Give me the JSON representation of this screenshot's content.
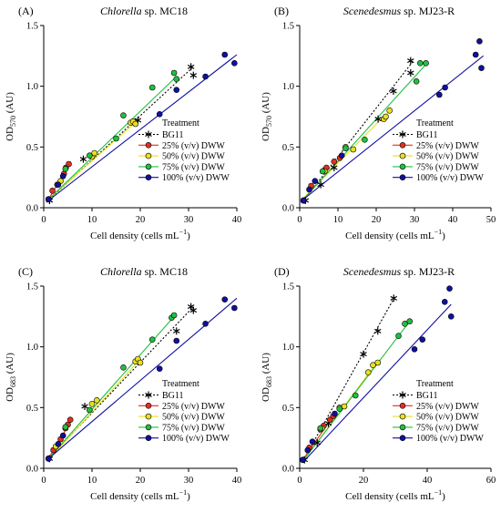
{
  "figure": {
    "legend_title": "Treatment",
    "legend_placement": "bottom-right"
  },
  "chart_data": [
    {
      "type": "scatter",
      "panel_label": "(A)",
      "title_italic": "Chlorella",
      "title_rest": " sp. MC18",
      "xlabel_main": "Cell density (cells mL",
      "xlabel_sup": "−1",
      "xlabel_end": ")",
      "ylabel_main": "OD",
      "ylabel_sub": "570",
      "ylabel_end": " (AU)",
      "xlim": [
        0,
        40
      ],
      "ylim": [
        0,
        1.5
      ],
      "xticks": [
        0,
        10,
        20,
        30,
        40
      ],
      "yticks": [
        0.0,
        0.5,
        1.0,
        1.5
      ],
      "series": [
        {
          "name": "BG11",
          "color": "#000000",
          "marker": "asterisk",
          "line": "dotted",
          "points": [
            [
              1.2,
              0.06
            ],
            [
              8.2,
              0.4
            ],
            [
              19.5,
              0.72
            ],
            [
              30.5,
              1.16
            ],
            [
              31.0,
              1.09
            ]
          ],
          "fit": [
            [
              1.2,
              0.07
            ],
            [
              31.0,
              1.16
            ]
          ]
        },
        {
          "name": "25% (v/v) DWW",
          "color": "#e03020",
          "marker": "circle",
          "line": "solid",
          "points": [
            [
              1.0,
              0.07
            ],
            [
              1.8,
              0.14
            ],
            [
              2.8,
              0.19
            ],
            [
              4.2,
              0.28
            ],
            [
              4.6,
              0.33
            ],
            [
              5.2,
              0.36
            ]
          ],
          "fit": [
            [
              1.0,
              0.07
            ],
            [
              5.2,
              0.35
            ]
          ]
        },
        {
          "name": "50% (v/v) DWW",
          "color": "#e8e020",
          "marker": "circle",
          "line": "solid",
          "points": [
            [
              1.0,
              0.07
            ],
            [
              3.5,
              0.22
            ],
            [
              10.0,
              0.42
            ],
            [
              10.5,
              0.45
            ],
            [
              18.0,
              0.7
            ],
            [
              18.5,
              0.71
            ],
            [
              19.0,
              0.69
            ]
          ],
          "fit": [
            [
              1.0,
              0.07
            ],
            [
              19.5,
              0.72
            ]
          ]
        },
        {
          "name": "75% (v/v) DWW",
          "color": "#20c040",
          "marker": "circle",
          "line": "solid",
          "points": [
            [
              1.0,
              0.07
            ],
            [
              4.5,
              0.32
            ],
            [
              9.5,
              0.43
            ],
            [
              15.0,
              0.57
            ],
            [
              16.5,
              0.76
            ],
            [
              22.5,
              0.99
            ],
            [
              27.0,
              1.11
            ],
            [
              27.5,
              1.06
            ]
          ],
          "fit": [
            [
              1.0,
              0.07
            ],
            [
              27.5,
              1.08
            ]
          ]
        },
        {
          "name": "100% (v/v) DWW",
          "color": "#1010a0",
          "marker": "circle",
          "line": "solid",
          "points": [
            [
              1.0,
              0.07
            ],
            [
              3.0,
              0.19
            ],
            [
              4.0,
              0.26
            ],
            [
              24.0,
              0.77
            ],
            [
              27.5,
              0.97
            ],
            [
              33.5,
              1.08
            ],
            [
              37.5,
              1.26
            ],
            [
              39.5,
              1.19
            ]
          ],
          "fit": [
            [
              1.0,
              0.06
            ],
            [
              40.0,
              1.26
            ]
          ]
        }
      ]
    },
    {
      "type": "scatter",
      "panel_label": "(B)",
      "title_italic": "Scenedesmus",
      "title_rest": " sp. MJ23-R",
      "xlabel_main": "Cell density (cells mL",
      "xlabel_sup": "−1",
      "xlabel_end": ")",
      "ylabel_main": "OD",
      "ylabel_sub": "570",
      "ylabel_end": " (AU)",
      "xlim": [
        0,
        50
      ],
      "ylim": [
        0,
        1.5
      ],
      "xticks": [
        0,
        10,
        20,
        30,
        40,
        50
      ],
      "yticks": [
        0.0,
        0.5,
        1.0,
        1.5
      ],
      "series": [
        {
          "name": "BG11",
          "color": "#000000",
          "marker": "asterisk",
          "line": "dotted",
          "points": [
            [
              1.5,
              0.06
            ],
            [
              5.5,
              0.19
            ],
            [
              9.0,
              0.33
            ],
            [
              20.5,
              0.73
            ],
            [
              24.5,
              0.96
            ],
            [
              29.0,
              1.11
            ],
            [
              29.0,
              1.21
            ]
          ],
          "fit": [
            [
              1.0,
              0.06
            ],
            [
              29.5,
              1.2
            ]
          ]
        },
        {
          "name": "25% (v/v) DWW",
          "color": "#e03020",
          "marker": "circle",
          "line": "solid",
          "points": [
            [
              1.0,
              0.06
            ],
            [
              3.0,
              0.18
            ],
            [
              6.5,
              0.31
            ],
            [
              7.0,
              0.33
            ],
            [
              9.0,
              0.38
            ],
            [
              10.5,
              0.41
            ]
          ],
          "fit": [
            [
              1.0,
              0.07
            ],
            [
              10.5,
              0.4
            ]
          ]
        },
        {
          "name": "50% (v/v) DWW",
          "color": "#e8e020",
          "marker": "circle",
          "line": "solid",
          "points": [
            [
              1.0,
              0.06
            ],
            [
              6.5,
              0.3
            ],
            [
              12.0,
              0.5
            ],
            [
              14.0,
              0.48
            ],
            [
              22.0,
              0.73
            ],
            [
              22.5,
              0.75
            ],
            [
              23.5,
              0.8
            ]
          ],
          "fit": [
            [
              1.0,
              0.08
            ],
            [
              23.5,
              0.8
            ]
          ]
        },
        {
          "name": "75% (v/v) DWW",
          "color": "#20c040",
          "marker": "circle",
          "line": "solid",
          "points": [
            [
              1.0,
              0.06
            ],
            [
              6.0,
              0.3
            ],
            [
              12.0,
              0.49
            ],
            [
              17.0,
              0.56
            ],
            [
              30.5,
              1.04
            ],
            [
              31.5,
              1.19
            ],
            [
              33.0,
              1.19
            ]
          ],
          "fit": [
            [
              1.0,
              0.07
            ],
            [
              33.0,
              1.18
            ]
          ]
        },
        {
          "name": "100% (v/v) DWW",
          "color": "#1010a0",
          "marker": "circle",
          "line": "solid",
          "points": [
            [
              1.0,
              0.06
            ],
            [
              2.5,
              0.15
            ],
            [
              4.0,
              0.22
            ],
            [
              11.0,
              0.43
            ],
            [
              36.5,
              0.93
            ],
            [
              38.0,
              0.99
            ],
            [
              46.0,
              1.26
            ],
            [
              47.0,
              1.37
            ],
            [
              47.5,
              1.15
            ]
          ],
          "fit": [
            [
              1.0,
              0.07
            ],
            [
              48.0,
              1.25
            ]
          ]
        }
      ]
    },
    {
      "type": "scatter",
      "panel_label": "(C)",
      "title_italic": "Chlorella",
      "title_rest": " sp. MC18",
      "xlabel_main": "Cell density (cells mL",
      "xlabel_sup": "−1",
      "xlabel_end": ")",
      "ylabel_main": "OD",
      "ylabel_sub": "683",
      "ylabel_end": " (AU)",
      "xlim": [
        0,
        40
      ],
      "ylim": [
        0,
        1.5
      ],
      "xticks": [
        0,
        10,
        20,
        30,
        40
      ],
      "yticks": [
        0.0,
        0.5,
        1.0,
        1.5
      ],
      "series": [
        {
          "name": "BG11",
          "color": "#000000",
          "marker": "asterisk",
          "line": "dotted",
          "points": [
            [
              1.2,
              0.08
            ],
            [
              8.5,
              0.51
            ],
            [
              19.5,
              0.88
            ],
            [
              27.5,
              1.13
            ],
            [
              30.5,
              1.33
            ],
            [
              31.0,
              1.3
            ]
          ],
          "fit": [
            [
              1.2,
              0.09
            ],
            [
              31.0,
              1.33
            ]
          ]
        },
        {
          "name": "25% (v/v) DWW",
          "color": "#e03020",
          "marker": "circle",
          "line": "solid",
          "points": [
            [
              1.0,
              0.08
            ],
            [
              2.0,
              0.15
            ],
            [
              3.5,
              0.24
            ],
            [
              4.5,
              0.33
            ],
            [
              5.0,
              0.36
            ],
            [
              5.5,
              0.4
            ]
          ],
          "fit": [
            [
              1.0,
              0.08
            ],
            [
              5.5,
              0.38
            ]
          ]
        },
        {
          "name": "50% (v/v) DWW",
          "color": "#e8e020",
          "marker": "circle",
          "line": "solid",
          "points": [
            [
              1.0,
              0.08
            ],
            [
              2.5,
              0.18
            ],
            [
              10.0,
              0.53
            ],
            [
              11.0,
              0.56
            ],
            [
              19.0,
              0.88
            ],
            [
              19.5,
              0.9
            ],
            [
              20.0,
              0.87
            ]
          ],
          "fit": [
            [
              1.0,
              0.07
            ],
            [
              20.0,
              0.9
            ]
          ]
        },
        {
          "name": "75% (v/v) DWW",
          "color": "#20c040",
          "marker": "circle",
          "line": "solid",
          "points": [
            [
              1.0,
              0.08
            ],
            [
              4.5,
              0.34
            ],
            [
              9.5,
              0.48
            ],
            [
              16.5,
              0.83
            ],
            [
              22.5,
              1.06
            ],
            [
              26.5,
              1.24
            ],
            [
              27.0,
              1.26
            ]
          ],
          "fit": [
            [
              1.0,
              0.08
            ],
            [
              27.0,
              1.25
            ]
          ]
        },
        {
          "name": "100% (v/v) DWW",
          "color": "#1010a0",
          "marker": "circle",
          "line": "solid",
          "points": [
            [
              1.0,
              0.08
            ],
            [
              3.0,
              0.2
            ],
            [
              4.0,
              0.27
            ],
            [
              24.0,
              0.82
            ],
            [
              27.5,
              1.05
            ],
            [
              33.5,
              1.19
            ],
            [
              37.5,
              1.39
            ],
            [
              39.5,
              1.32
            ]
          ],
          "fit": [
            [
              1.0,
              0.08
            ],
            [
              40.0,
              1.4
            ]
          ]
        }
      ]
    },
    {
      "type": "scatter",
      "panel_label": "(D)",
      "title_italic": "Scenedesmus",
      "title_rest": " sp. MJ23-R",
      "xlabel_main": "Cell density (cells mL",
      "xlabel_sup": "−1",
      "xlabel_end": ")",
      "ylabel_main": "OD",
      "ylabel_sub": "683",
      "ylabel_end": " (AU)",
      "xlim": [
        0,
        60
      ],
      "ylim": [
        0,
        1.5
      ],
      "xticks": [
        0,
        20,
        40,
        60
      ],
      "yticks": [
        0.0,
        0.5,
        1.0,
        1.5
      ],
      "series": [
        {
          "name": "BG11",
          "color": "#000000",
          "marker": "asterisk",
          "line": "dotted",
          "points": [
            [
              1.5,
              0.07
            ],
            [
              5.5,
              0.21
            ],
            [
              9.0,
              0.37
            ],
            [
              20.0,
              0.94
            ],
            [
              24.5,
              1.13
            ],
            [
              29.5,
              1.4
            ]
          ],
          "fit": [
            [
              1.0,
              0.06
            ],
            [
              30.0,
              1.42
            ]
          ]
        },
        {
          "name": "25% (v/v) DWW",
          "color": "#e03020",
          "marker": "circle",
          "line": "solid",
          "points": [
            [
              1.0,
              0.07
            ],
            [
              3.0,
              0.17
            ],
            [
              6.5,
              0.32
            ],
            [
              7.5,
              0.35
            ],
            [
              9.5,
              0.4
            ],
            [
              10.5,
              0.43
            ]
          ],
          "fit": [
            [
              1.0,
              0.07
            ],
            [
              10.5,
              0.43
            ]
          ]
        },
        {
          "name": "50% (v/v) DWW",
          "color": "#e8e020",
          "marker": "circle",
          "line": "solid",
          "points": [
            [
              1.0,
              0.07
            ],
            [
              7.0,
              0.33
            ],
            [
              12.5,
              0.5
            ],
            [
              14.0,
              0.51
            ],
            [
              21.5,
              0.79
            ],
            [
              23.0,
              0.85
            ],
            [
              24.5,
              0.87
            ]
          ],
          "fit": [
            [
              1.0,
              0.06
            ],
            [
              24.5,
              0.88
            ]
          ]
        },
        {
          "name": "75% (v/v) DWW",
          "color": "#20c040",
          "marker": "circle",
          "line": "solid",
          "points": [
            [
              1.0,
              0.07
            ],
            [
              6.5,
              0.33
            ],
            [
              12.5,
              0.49
            ],
            [
              17.5,
              0.6
            ],
            [
              31.0,
              1.09
            ],
            [
              33.0,
              1.19
            ],
            [
              34.5,
              1.21
            ]
          ],
          "fit": [
            [
              1.0,
              0.06
            ],
            [
              34.5,
              1.21
            ]
          ]
        },
        {
          "name": "100% (v/v) DWW",
          "color": "#1010a0",
          "marker": "circle",
          "line": "solid",
          "points": [
            [
              1.0,
              0.07
            ],
            [
              2.5,
              0.15
            ],
            [
              4.0,
              0.22
            ],
            [
              11.0,
              0.45
            ],
            [
              36.0,
              0.98
            ],
            [
              38.5,
              1.06
            ],
            [
              45.5,
              1.37
            ],
            [
              47.0,
              1.48
            ],
            [
              47.5,
              1.25
            ]
          ],
          "fit": [
            [
              1.0,
              0.05
            ],
            [
              47.5,
              1.35
            ]
          ]
        }
      ]
    }
  ]
}
